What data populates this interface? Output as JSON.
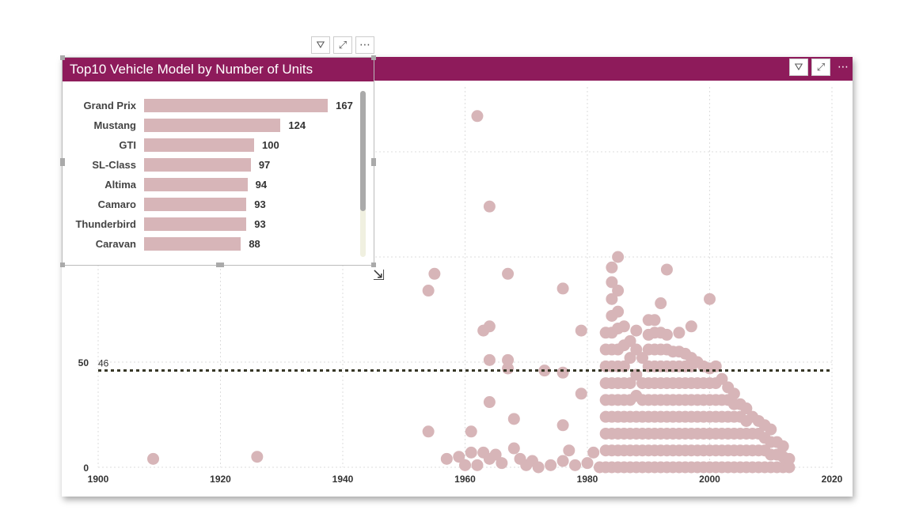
{
  "colors": {
    "header": "#8E1B5B",
    "dot": "#D7B5B8",
    "bar": "#D7B5B8",
    "refline": "#333322"
  },
  "icons": {
    "filter": "filter-icon",
    "focus": "focus-mode-icon",
    "more": "more-options-icon"
  },
  "bar_visual": {
    "title": "Top10 Vehicle Model by Number of Units",
    "items": [
      {
        "label": "Grand Prix",
        "value": 167
      },
      {
        "label": "Mustang",
        "value": 124
      },
      {
        "label": "GTI",
        "value": 100
      },
      {
        "label": "SL-Class",
        "value": 97
      },
      {
        "label": "Altima",
        "value": 94
      },
      {
        "label": "Camaro",
        "value": 93
      },
      {
        "label": "Thunderbird",
        "value": 93
      },
      {
        "label": "Caravan",
        "value": 88
      }
    ]
  },
  "chart_data": {
    "type": "scatter",
    "xlim": [
      1900,
      2020
    ],
    "ylim": [
      0,
      180
    ],
    "xticks": [
      "1900",
      "1920",
      "1940",
      "1960",
      "1980",
      "2000",
      "2020"
    ],
    "yticks": [
      "0",
      "50"
    ],
    "reference_line": {
      "value": 46,
      "label": "46"
    },
    "points": [
      [
        1909,
        4
      ],
      [
        1926,
        5
      ],
      [
        1954,
        17
      ],
      [
        1954,
        84
      ],
      [
        1955,
        92
      ],
      [
        1957,
        4
      ],
      [
        1959,
        5
      ],
      [
        1960,
        1
      ],
      [
        1961,
        17
      ],
      [
        1961,
        7
      ],
      [
        1962,
        1
      ],
      [
        1962,
        167
      ],
      [
        1963,
        7
      ],
      [
        1963,
        65
      ],
      [
        1964,
        124
      ],
      [
        1964,
        67
      ],
      [
        1964,
        51
      ],
      [
        1964,
        31
      ],
      [
        1964,
        4
      ],
      [
        1965,
        6
      ],
      [
        1966,
        2
      ],
      [
        1967,
        51
      ],
      [
        1967,
        47
      ],
      [
        1967,
        92
      ],
      [
        1968,
        23
      ],
      [
        1968,
        9
      ],
      [
        1969,
        4
      ],
      [
        1970,
        1
      ],
      [
        1971,
        3
      ],
      [
        1972,
        0
      ],
      [
        1973,
        46
      ],
      [
        1974,
        1
      ],
      [
        1976,
        45
      ],
      [
        1976,
        85
      ],
      [
        1976,
        20
      ],
      [
        1976,
        3
      ],
      [
        1977,
        8
      ],
      [
        1978,
        1
      ],
      [
        1979,
        35
      ],
      [
        1979,
        65
      ],
      [
        1980,
        2
      ],
      [
        1981,
        7
      ],
      [
        1982,
        0
      ]
    ],
    "columns": [
      {
        "x": 1983,
        "y": [
          0,
          8,
          16,
          24,
          32,
          40,
          48,
          56,
          64
        ]
      },
      {
        "x": 1984,
        "y": [
          0,
          8,
          16,
          24,
          32,
          40,
          48,
          56,
          64,
          72,
          80,
          88,
          95
        ]
      },
      {
        "x": 1985,
        "y": [
          0,
          8,
          16,
          24,
          32,
          40,
          48,
          56,
          66,
          74,
          84,
          100
        ]
      },
      {
        "x": 1986,
        "y": [
          0,
          8,
          16,
          24,
          32,
          40,
          48,
          58,
          67
        ]
      },
      {
        "x": 1987,
        "y": [
          0,
          8,
          16,
          24,
          32,
          40,
          52,
          60
        ]
      },
      {
        "x": 1988,
        "y": [
          0,
          8,
          16,
          24,
          34,
          44,
          56,
          65
        ]
      },
      {
        "x": 1989,
        "y": [
          0,
          8,
          16,
          24,
          32,
          40,
          52
        ]
      },
      {
        "x": 1990,
        "y": [
          0,
          8,
          16,
          24,
          32,
          40,
          48,
          56,
          63,
          70
        ]
      },
      {
        "x": 1991,
        "y": [
          0,
          8,
          16,
          24,
          32,
          40,
          48,
          56,
          64,
          70
        ]
      },
      {
        "x": 1992,
        "y": [
          0,
          8,
          16,
          24,
          32,
          40,
          48,
          56,
          64,
          78
        ]
      },
      {
        "x": 1993,
        "y": [
          0,
          8,
          16,
          24,
          32,
          40,
          48,
          56,
          63,
          94
        ]
      },
      {
        "x": 1994,
        "y": [
          0,
          8,
          16,
          24,
          32,
          40,
          48,
          55
        ]
      },
      {
        "x": 1995,
        "y": [
          0,
          8,
          16,
          24,
          32,
          40,
          48,
          55,
          64
        ]
      },
      {
        "x": 1996,
        "y": [
          0,
          8,
          16,
          24,
          32,
          40,
          48,
          54
        ]
      },
      {
        "x": 1997,
        "y": [
          0,
          8,
          16,
          24,
          32,
          40,
          48,
          52,
          67
        ]
      },
      {
        "x": 1998,
        "y": [
          0,
          8,
          16,
          24,
          32,
          40,
          50
        ]
      },
      {
        "x": 1999,
        "y": [
          0,
          8,
          16,
          24,
          32,
          40,
          48
        ]
      },
      {
        "x": 2000,
        "y": [
          0,
          8,
          16,
          24,
          32,
          40,
          47,
          80
        ]
      },
      {
        "x": 2001,
        "y": [
          0,
          8,
          16,
          24,
          32,
          40,
          48
        ]
      },
      {
        "x": 2002,
        "y": [
          0,
          8,
          16,
          24,
          32,
          42
        ]
      },
      {
        "x": 2003,
        "y": [
          0,
          8,
          16,
          24,
          32,
          38
        ]
      },
      {
        "x": 2004,
        "y": [
          0,
          8,
          16,
          24,
          30,
          35
        ]
      },
      {
        "x": 2005,
        "y": [
          0,
          8,
          16,
          24,
          30
        ]
      },
      {
        "x": 2006,
        "y": [
          0,
          8,
          16,
          22,
          28
        ]
      },
      {
        "x": 2007,
        "y": [
          0,
          8,
          16,
          24
        ]
      },
      {
        "x": 2008,
        "y": [
          0,
          8,
          16,
          22
        ]
      },
      {
        "x": 2009,
        "y": [
          0,
          8,
          14,
          20
        ]
      },
      {
        "x": 2010,
        "y": [
          0,
          6,
          12,
          18
        ]
      },
      {
        "x": 2011,
        "y": [
          0,
          6,
          12
        ]
      },
      {
        "x": 2012,
        "y": [
          0,
          5,
          10
        ]
      },
      {
        "x": 2013,
        "y": [
          0,
          4
        ]
      }
    ]
  }
}
